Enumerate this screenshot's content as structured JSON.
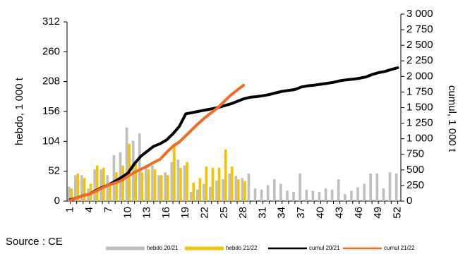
{
  "chart_data": {
    "type": "bar_line",
    "y_label": "hebdo, 1 000 t",
    "y2_label": "cumul, 1 000 t",
    "source": "Source : CE",
    "categories": [
      "1",
      null,
      null,
      "4",
      null,
      null,
      "7",
      null,
      null,
      "10",
      null,
      null,
      "13",
      null,
      null,
      "16",
      null,
      null,
      "19",
      null,
      null,
      "22",
      null,
      null,
      "25",
      null,
      null,
      "28",
      null,
      null,
      "31",
      null,
      null,
      "34",
      null,
      null,
      "37",
      null,
      null,
      "40",
      null,
      null,
      "43",
      null,
      null,
      "46",
      null,
      null,
      "49",
      null,
      null,
      "52"
    ],
    "ylim": [
      0,
      312
    ],
    "yticks": [
      0,
      52,
      104,
      156,
      208,
      260,
      312
    ],
    "y2lim": [
      0,
      3000
    ],
    "y2ticks": [
      0,
      250,
      500,
      750,
      {
        "value": 1000,
        "label": "1 000"
      },
      {
        "value": 1250,
        "label": "1 250"
      },
      {
        "value": 1500,
        "label": "1 500"
      },
      {
        "value": 1750,
        "label": "1 750"
      },
      {
        "value": 2000,
        "label": "2 000"
      },
      {
        "value": 2250,
        "label": "2 250"
      },
      {
        "value": 2500,
        "label": "2 500"
      },
      {
        "value": 2750,
        "label": "2 750"
      },
      {
        "value": 3000,
        "label": "3 000"
      }
    ],
    "series": [
      {
        "name": "hebdo 20/21",
        "kind": "bar",
        "color": "#bfbfbf",
        "values": [
          25,
          45,
          45,
          22,
          55,
          55,
          45,
          80,
          85,
          128,
          105,
          118,
          60,
          62,
          45,
          50,
          68,
          72,
          62,
          16,
          20,
          30,
          25,
          36,
          38,
          48,
          44,
          40,
          48,
          22,
          20,
          28,
          38,
          30,
          18,
          16,
          48,
          20,
          18,
          16,
          22,
          20,
          38,
          12,
          18,
          24,
          30,
          48,
          48,
          22,
          50,
          48
        ]
      },
      {
        "name": "hebdo 21/22",
        "kind": "bar",
        "color": "#f2c500",
        "values": [
          22,
          48,
          40,
          30,
          62,
          58,
          30,
          50,
          62,
          100,
          65,
          50,
          55,
          55,
          45,
          45,
          100,
          58,
          68,
          32,
          40,
          60,
          58,
          58,
          90,
          60,
          38,
          35,
          null,
          null,
          null,
          null,
          null,
          null,
          null,
          null,
          null,
          null,
          null,
          null,
          null,
          null,
          null,
          null,
          null,
          null,
          null,
          null,
          null,
          null,
          null,
          null
        ]
      },
      {
        "name": "cumul 20/21",
        "kind": "line",
        "axis": "y2",
        "color": "#000000",
        "values": [
          20,
          50,
          90,
          110,
          170,
          220,
          260,
          320,
          380,
          450,
          600,
          720,
          800,
          880,
          920,
          980,
          1080,
          1200,
          1400,
          1420,
          1440,
          1460,
          1480,
          1500,
          1530,
          1560,
          1600,
          1640,
          1665,
          1675,
          1690,
          1710,
          1735,
          1760,
          1775,
          1790,
          1830,
          1850,
          1860,
          1875,
          1890,
          1905,
          1930,
          1945,
          1955,
          1970,
          1990,
          2030,
          2060,
          2080,
          2110,
          2140
        ]
      },
      {
        "name": "cumul 21/22",
        "kind": "line",
        "axis": "y2",
        "color": "#f36c21",
        "values": [
          10,
          50,
          90,
          110,
          160,
          210,
          260,
          290,
          330,
          400,
          460,
          510,
          560,
          620,
          670,
          780,
          880,
          950,
          1050,
          1150,
          1250,
          1340,
          1420,
          1500,
          1600,
          1700,
          1780,
          1860,
          null,
          null,
          null,
          null,
          null,
          null,
          null,
          null,
          null,
          null,
          null,
          null,
          null,
          null,
          null,
          null,
          null,
          null,
          null,
          null,
          null,
          null,
          null,
          null
        ]
      }
    ]
  }
}
